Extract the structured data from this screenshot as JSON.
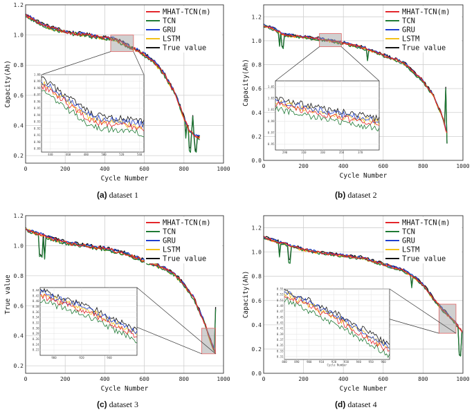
{
  "series_names": [
    "MHAT-TCN(m)",
    "TCN",
    "GRU",
    "LSTM",
    "True value"
  ],
  "series_colors": [
    "#e3262b",
    "#1f7a35",
    "#1f3fcf",
    "#f2c218",
    "#111111"
  ],
  "chart_data": [
    {
      "type": "line",
      "id": "a",
      "caption_letter": "(a)",
      "caption_text": "dataset 1",
      "xlabel": "Cycle Number",
      "ylabel": "Capacity(Ah)",
      "xlim": [
        0,
        1000
      ],
      "ylim": [
        0.15,
        1.2
      ],
      "xticks": [
        0,
        200,
        400,
        600,
        800,
        1000
      ],
      "yticks": [
        0.2,
        0.4,
        0.6,
        0.8,
        1.0,
        1.2
      ],
      "ytick_labels": [
        "0.2",
        "0.4",
        "0.6",
        "0.8",
        "1.0",
        "1.2"
      ],
      "xticks_labels": [
        "0",
        "200",
        "400",
        "600",
        "800",
        "1000"
      ],
      "legend": [
        "MHAT-TCN(m)",
        "TCN",
        "GRU",
        "LSTM",
        "True value"
      ],
      "legend_position": "top-right",
      "trend_x": [
        0,
        100,
        200,
        300,
        400,
        450,
        500,
        560,
        600,
        650,
        700,
        760,
        800,
        830,
        860,
        880
      ],
      "trend_y": [
        1.13,
        1.06,
        1.02,
        1.0,
        0.98,
        0.97,
        0.94,
        0.9,
        0.87,
        0.82,
        0.74,
        0.6,
        0.45,
        0.36,
        0.33,
        0.32
      ],
      "spikes": [
        {
          "x": 810,
          "dy": -0.1
        },
        {
          "x": 830,
          "dy": -0.12
        },
        {
          "x": 845,
          "dy": 0.12
        },
        {
          "x": 860,
          "dy": -0.1
        }
      ],
      "zoom_region": {
        "x": [
          430,
          545
        ],
        "y": [
          0.89,
          1.0
        ]
      },
      "inset": {
        "xlim": [
          430,
          545
        ],
        "ylim": [
          0.885,
          1.0
        ],
        "xticks": [
          440,
          460,
          480,
          500,
          520,
          540
        ],
        "xtick_labels": [
          "440",
          "460",
          "480",
          "500",
          "520",
          "540"
        ],
        "yticks": [
          0.89,
          0.9,
          0.91,
          0.92,
          0.93,
          0.94,
          0.95,
          0.96,
          0.97,
          0.98,
          0.99,
          1.0
        ],
        "ytick_labels": [
          "0.89",
          "0.90",
          "0.91",
          "0.92",
          "0.93",
          "0.94",
          "0.95",
          "0.96",
          "0.97",
          "0.98",
          "0.99",
          "1.00"
        ],
        "trend_y": [
          0.985,
          0.93,
          0.92
        ]
      }
    },
    {
      "type": "line",
      "id": "b",
      "caption_letter": "(b)",
      "caption_text": "dataset 2",
      "xlabel": "Cycle Number",
      "ylabel": "Capacity(Ah)",
      "xlim": [
        0,
        1000
      ],
      "ylim": [
        0.0,
        1.3
      ],
      "xticks": [
        0,
        200,
        400,
        600,
        800,
        1000
      ],
      "yticks": [
        0.0,
        0.2,
        0.4,
        0.6,
        0.8,
        1.0,
        1.2
      ],
      "ytick_labels": [
        "0.0",
        "0.2",
        "0.4",
        "0.6",
        "0.8",
        "1.0",
        "1.2"
      ],
      "xticks_labels": [
        "0",
        "200",
        "400",
        "600",
        "800",
        "1000"
      ],
      "legend": [
        "MHAT-TCN(m)",
        "TCN",
        "GRU",
        "LSTM",
        "True value"
      ],
      "legend_position": "top-right",
      "trend_x": [
        0,
        50,
        100,
        200,
        300,
        400,
        480,
        520,
        600,
        700,
        800,
        850,
        900,
        920
      ],
      "trend_y": [
        1.13,
        1.1,
        1.05,
        1.03,
        1.01,
        0.98,
        0.95,
        0.93,
        0.88,
        0.82,
        0.66,
        0.55,
        0.35,
        0.22
      ],
      "spikes": [
        {
          "x": 80,
          "dy": -0.12
        },
        {
          "x": 95,
          "dy": -0.11
        },
        {
          "x": 520,
          "dy": -0.1
        },
        {
          "x": 915,
          "dy": 0.35
        },
        {
          "x": 920,
          "dy": -0.08
        }
      ],
      "zoom_region": {
        "x": [
          280,
          390
        ],
        "y": [
          0.95,
          1.06
        ]
      },
      "inset": {
        "xlim": [
          280,
          390
        ],
        "ylim": [
          0.94,
          1.06
        ],
        "xticks": [
          290,
          310,
          330,
          350,
          370
        ],
        "xtick_labels": [
          "290",
          "310",
          "330",
          "350",
          "370"
        ],
        "yticks": [
          0.95,
          0.97,
          0.99,
          1.01,
          1.03,
          1.05
        ],
        "ytick_labels": [
          "0.95",
          "0.97",
          "0.99",
          "1.01",
          "1.03",
          "1.05"
        ],
        "trend_y": [
          1.02,
          1.0,
          0.985
        ]
      }
    },
    {
      "type": "line",
      "id": "c",
      "caption_letter": "(c)",
      "caption_text": "dataset 3",
      "xlabel": "Cycle Number",
      "ylabel": "True value",
      "xlim": [
        0,
        1000
      ],
      "ylim": [
        0.15,
        1.2
      ],
      "xticks": [
        0,
        200,
        400,
        600,
        800,
        1000
      ],
      "yticks": [
        0.2,
        0.4,
        0.6,
        0.8,
        1.0,
        1.2
      ],
      "ytick_labels": [
        "0.2",
        "0.4",
        "0.6",
        "0.8",
        "1.0",
        "1.2"
      ],
      "xticks_labels": [
        "0",
        "200",
        "400",
        "600",
        "800",
        "1000"
      ],
      "legend": [
        "MHAT-TCN(m)",
        "TCN",
        "GRU",
        "LSTM",
        "True value"
      ],
      "legend_position": "top-right",
      "trend_x": [
        0,
        100,
        200,
        300,
        400,
        500,
        600,
        700,
        760,
        800,
        850,
        900,
        930,
        960
      ],
      "trend_y": [
        1.11,
        1.06,
        1.02,
        1.0,
        0.98,
        0.95,
        0.9,
        0.85,
        0.8,
        0.74,
        0.65,
        0.5,
        0.38,
        0.28
      ],
      "spikes": [
        {
          "x": 70,
          "dy": -0.13
        },
        {
          "x": 80,
          "dy": -0.14
        },
        {
          "x": 95,
          "dy": -0.15
        },
        {
          "x": 960,
          "dy": 0.3
        },
        {
          "x": 965,
          "dy": -0.08
        }
      ],
      "zoom_region": {
        "x": [
          890,
          960
        ],
        "y": [
          0.28,
          0.45
        ]
      },
      "inset": {
        "xlim": [
          890,
          960
        ],
        "ylim": [
          0.2,
          0.45
        ],
        "xticks": [
          900,
          920,
          940
        ],
        "xtick_labels": [
          "900",
          "920",
          "940"
        ],
        "yticks": [
          0.22,
          0.24,
          0.26,
          0.28,
          0.3,
          0.32,
          0.34,
          0.36,
          0.38,
          0.4,
          0.42,
          0.44
        ],
        "ytick_labels": [
          "0.22",
          "0.24",
          "0.26",
          "0.28",
          "0.30",
          "0.32",
          "0.34",
          "0.36",
          "0.38",
          "0.40",
          "0.42",
          "0.44"
        ],
        "trend_y": [
          0.42,
          0.36,
          0.27
        ]
      }
    },
    {
      "type": "line",
      "id": "d",
      "caption_letter": "(d)",
      "caption_text": "dataset 4",
      "xlabel": "Cycle Number",
      "ylabel": "Capacity(Ah)",
      "xlim": [
        0,
        1000
      ],
      "ylim": [
        0.0,
        1.3
      ],
      "xticks": [
        0,
        200,
        400,
        600,
        800,
        1000
      ],
      "yticks": [
        0.0,
        0.2,
        0.4,
        0.6,
        0.8,
        1.0,
        1.2
      ],
      "ytick_labels": [
        "0.0",
        "0.2",
        "0.4",
        "0.6",
        "0.8",
        "1.0",
        "1.2"
      ],
      "xticks_labels": [
        "0",
        "200",
        "400",
        "600",
        "800",
        "1000"
      ],
      "legend": [
        "MHAT-TCN(m)",
        "TCN",
        "GRU",
        "LSTM",
        "True value"
      ],
      "legend_position": "top-right",
      "trend_x": [
        0,
        100,
        200,
        300,
        400,
        500,
        600,
        700,
        750,
        800,
        850,
        900,
        950,
        980,
        995
      ],
      "trend_y": [
        1.12,
        1.07,
        1.02,
        0.99,
        0.97,
        0.95,
        0.9,
        0.85,
        0.8,
        0.73,
        0.62,
        0.52,
        0.44,
        0.38,
        0.35
      ],
      "spikes": [
        {
          "x": 80,
          "dy": -0.12
        },
        {
          "x": 130,
          "dy": -0.13
        },
        {
          "x": 745,
          "dy": -0.1
        },
        {
          "x": 985,
          "dy": -0.22
        }
      ],
      "zoom_region": {
        "x": [
          880,
          965
        ],
        "y": [
          0.33,
          0.57
        ]
      },
      "inset": {
        "xlim": [
          880,
          965
        ],
        "ylim": [
          0.3,
          0.55
        ],
        "xticks": [
          880,
          890,
          900,
          910,
          920,
          930,
          940,
          950,
          960
        ],
        "xtick_labels": [
          "880",
          "890",
          "900",
          "910",
          "920",
          "930",
          "940",
          "950",
          "960"
        ],
        "xlabel": "Cycle Number",
        "yticks": [
          0.31,
          0.33,
          0.35,
          0.37,
          0.39,
          0.41,
          0.43,
          0.45,
          0.47,
          0.49,
          0.51,
          0.53,
          0.55
        ],
        "ytick_labels": [
          "0.31",
          "0.33",
          "0.35",
          "0.37",
          "0.39",
          "0.41",
          "0.43",
          "0.45",
          "0.47",
          "0.49",
          "0.51",
          "0.53",
          "0.55"
        ],
        "trend_y": [
          0.53,
          0.44,
          0.33
        ]
      }
    }
  ]
}
